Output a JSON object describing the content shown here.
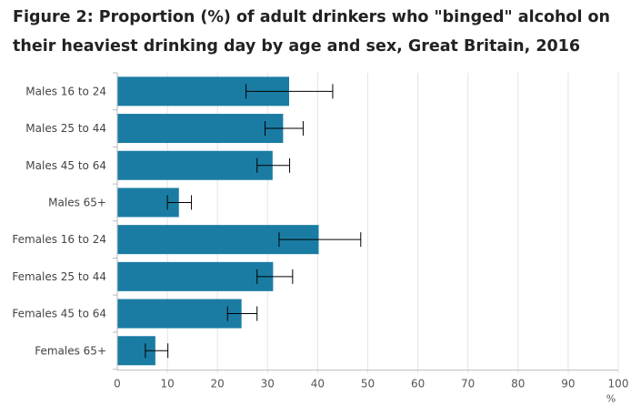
{
  "title_line1": "Figure 2: Proportion (%) of adult drinkers who \"binged\" alcohol on",
  "title_line2": "their heaviest drinking day by age and sex, Great Britain, 2016",
  "colors": {
    "bar": "#1a7ca3",
    "grid": "#e3e3e3",
    "axis": "#bbbbbb",
    "error": "#000000"
  },
  "chart_data": {
    "type": "bar",
    "orientation": "horizontal",
    "title": "Figure 2: Proportion (%) of adult drinkers who \"binged\" alcohol on their heaviest drinking day by age and sex, Great Britain, 2016",
    "categories": [
      "Males 16 to 24",
      "Males 25 to 44",
      "Males 45 to 64",
      "Males 65+",
      "Females 16 to 24",
      "Females 25 to 44",
      "Females 45 to 64",
      "Females 65+"
    ],
    "values": [
      34.3,
      33.1,
      31.0,
      12.3,
      40.2,
      31.1,
      24.8,
      7.6
    ],
    "error_low": [
      25.7,
      29.5,
      27.9,
      10.0,
      32.3,
      27.9,
      22.0,
      5.6
    ],
    "error_high": [
      43.0,
      37.1,
      34.4,
      14.8,
      48.6,
      35.0,
      27.9,
      10.1
    ],
    "xlim": [
      0,
      100
    ],
    "xticks": [
      0,
      10,
      20,
      30,
      40,
      50,
      60,
      70,
      80,
      90,
      100
    ],
    "xlabel": "%",
    "grid": true,
    "legend": "none"
  }
}
